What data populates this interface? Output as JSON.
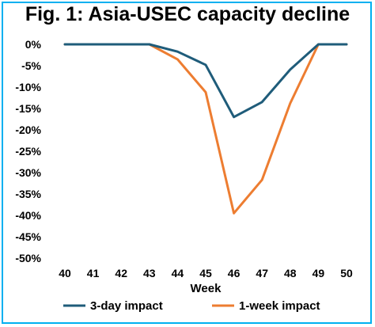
{
  "chart_data": {
    "type": "line",
    "title": "Fig. 1: Asia-USEC capacity decline",
    "xlabel": "Week",
    "ylabel": "",
    "x": [
      40,
      41,
      42,
      43,
      44,
      45,
      46,
      47,
      48,
      49,
      50
    ],
    "ylim": [
      -50,
      0
    ],
    "yticks": [
      0,
      -5,
      -10,
      -15,
      -20,
      -25,
      -30,
      -35,
      -40,
      -45,
      -50
    ],
    "ytick_suffix": "%",
    "grid": false,
    "legend_position": "bottom",
    "series": [
      {
        "name": "3-day impact",
        "color": "#1f5c7a",
        "values": [
          0,
          0,
          0,
          0,
          -1.7,
          -4.8,
          -17.0,
          -13.5,
          -5.9,
          0,
          0
        ]
      },
      {
        "name": "1-week impact",
        "color": "#ed7d31",
        "values": [
          0,
          0,
          0,
          0,
          -3.5,
          -11.2,
          -39.5,
          -31.7,
          -13.8,
          0,
          0
        ]
      }
    ]
  }
}
